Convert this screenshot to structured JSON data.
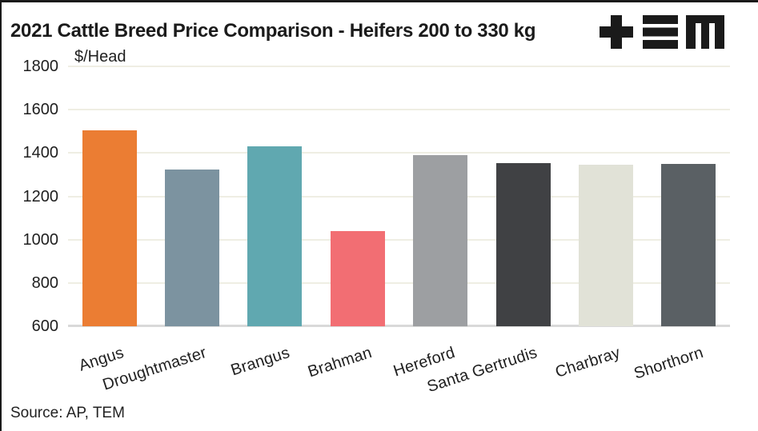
{
  "header": {
    "title": "2021 Cattle Breed Price Comparison - Heifers 200 to 330 kg"
  },
  "logo": {
    "name": "TEM",
    "color": "#1A1A1A"
  },
  "chart_data": {
    "type": "bar",
    "title": "2021 Cattle Breed Price Comparison - Heifers 200 to 330 kg",
    "ylabel": "$/Head",
    "xlabel": "",
    "categories": [
      "Angus",
      "Droughtmaster",
      "Brangus",
      "Brahman",
      "Hereford",
      "Santa Gertrudis",
      "Charbray",
      "Shorthorn"
    ],
    "values": [
      1505,
      1325,
      1430,
      1040,
      1390,
      1355,
      1345,
      1350
    ],
    "colors": [
      "#EB7D33",
      "#7C93A0",
      "#60A8B0",
      "#F26E73",
      "#9D9FA2",
      "#404144",
      "#E1E2D7",
      "#5A6064"
    ],
    "ylim": [
      600,
      1800
    ],
    "yticks": [
      600,
      800,
      1000,
      1200,
      1400,
      1600,
      1800
    ],
    "ytick_step": 200,
    "grid": true,
    "legend_position": "none",
    "x_label_rotation_deg": -18
  },
  "style": {
    "gridline_color": "#EFEEE3",
    "baseline_color": "#D9D9D9",
    "text_color": "#1F1F1F",
    "background": "#FFFFFF",
    "border_color": "#1A1A1A"
  },
  "footer": {
    "source": "Source: AP, TEM"
  }
}
